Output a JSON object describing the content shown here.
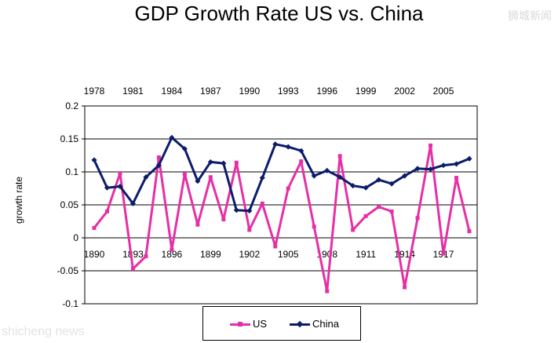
{
  "title": "GDP Growth Rate US vs. China",
  "watermark_top": "狮城新闻",
  "watermark_bottom": "shicheng news",
  "ylabel": "growth rate",
  "colors": {
    "us": "#e62fa6",
    "china": "#0b1c6b",
    "grid": "#000000"
  },
  "chart_data": {
    "type": "line",
    "title": "GDP Growth Rate US vs. China",
    "ylabel": "growth rate",
    "ylim": [
      -0.1,
      0.2
    ],
    "yticks": [
      -0.1,
      -0.05,
      0,
      0.05,
      0.1,
      0.15,
      0.2
    ],
    "ytick_labels": [
      "-0.1",
      "-0.05",
      "0",
      "0.05",
      "0.1",
      "0.15",
      "0.2"
    ],
    "grid": true,
    "legend_position": "bottom",
    "x_bottom_ticks": [
      "1890",
      "1893",
      "1896",
      "1899",
      "1902",
      "1905",
      "1908",
      "1911",
      "1914",
      "1917"
    ],
    "x_top_ticks": [
      "1978",
      "1981",
      "1984",
      "1987",
      "1990",
      "1993",
      "1996",
      "1999",
      "2002",
      "2005"
    ],
    "series": [
      {
        "name": "US",
        "x_axis": "bottom",
        "x": [
          1890,
          1891,
          1892,
          1893,
          1894,
          1895,
          1896,
          1897,
          1898,
          1899,
          1900,
          1901,
          1902,
          1903,
          1904,
          1905,
          1906,
          1907,
          1908,
          1909,
          1910,
          1911,
          1912,
          1913,
          1914,
          1915,
          1916,
          1917,
          1918,
          1919
        ],
        "values": [
          0.015,
          0.04,
          0.098,
          -0.047,
          -0.028,
          0.122,
          -0.018,
          0.097,
          0.02,
          0.092,
          0.028,
          0.114,
          0.012,
          0.052,
          -0.013,
          0.075,
          0.116,
          0.017,
          -0.081,
          0.124,
          0.012,
          0.033,
          0.047,
          0.04,
          -0.075,
          0.03,
          0.14,
          -0.024,
          0.091,
          0.01
        ]
      },
      {
        "name": "China",
        "x_axis": "top",
        "x": [
          1978,
          1979,
          1980,
          1981,
          1982,
          1983,
          1984,
          1985,
          1986,
          1987,
          1988,
          1989,
          1990,
          1991,
          1992,
          1993,
          1994,
          1995,
          1996,
          1997,
          1998,
          1999,
          2000,
          2001,
          2002,
          2003,
          2004,
          2005,
          2006,
          2007
        ],
        "values": [
          0.118,
          0.076,
          0.078,
          0.052,
          0.092,
          0.11,
          0.152,
          0.135,
          0.086,
          0.115,
          0.113,
          0.042,
          0.041,
          0.091,
          0.142,
          0.138,
          0.132,
          0.094,
          0.102,
          0.092,
          0.079,
          0.076,
          0.088,
          0.082,
          0.094,
          0.105,
          0.104,
          0.11,
          0.112,
          0.12
        ]
      }
    ]
  }
}
